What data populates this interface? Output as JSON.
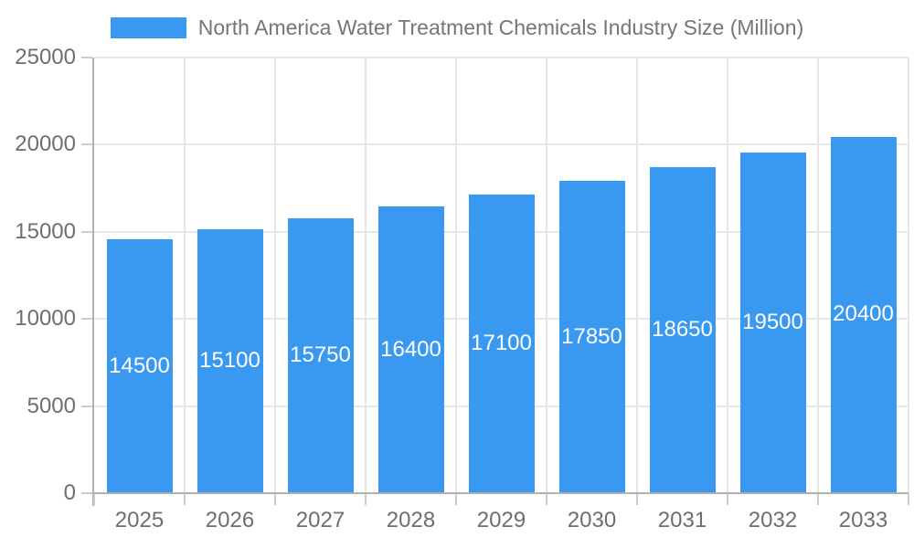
{
  "legend": {
    "label": "North America Water Treatment Chemicals Industry Size (Million)"
  },
  "colors": {
    "bar": "#3999F0",
    "gridline": "#e6e6e6",
    "axis_line": "#b0b0b0",
    "tick_mark": "#cccccc",
    "tick_text": "#6e6e6e",
    "legend_text": "#757575",
    "bar_label": "#ffffff",
    "background": "#ffffff"
  },
  "chart_data": {
    "type": "bar",
    "title": "North America Water Treatment Chemicals Industry Size (Million)",
    "xlabel": "",
    "ylabel": "",
    "categories": [
      "2025",
      "2026",
      "2027",
      "2028",
      "2029",
      "2030",
      "2031",
      "2032",
      "2033"
    ],
    "series": [
      {
        "name": "North America Water Treatment Chemicals Industry Size (Million)",
        "values": [
          14500,
          15100,
          15750,
          16400,
          17100,
          17850,
          18650,
          19500,
          20400
        ]
      }
    ],
    "bar_value_labels": [
      "14500",
      "15100",
      "15750",
      "16400",
      "17100",
      "17850",
      "18650",
      "19500",
      "20400"
    ],
    "ylim": [
      0,
      25000
    ],
    "yticks": [
      0,
      5000,
      10000,
      15000,
      20000,
      25000
    ],
    "ytick_labels": [
      "0",
      "5000",
      "10000",
      "15000",
      "20000",
      "25000"
    ],
    "grid": true,
    "legend_position": "top"
  }
}
